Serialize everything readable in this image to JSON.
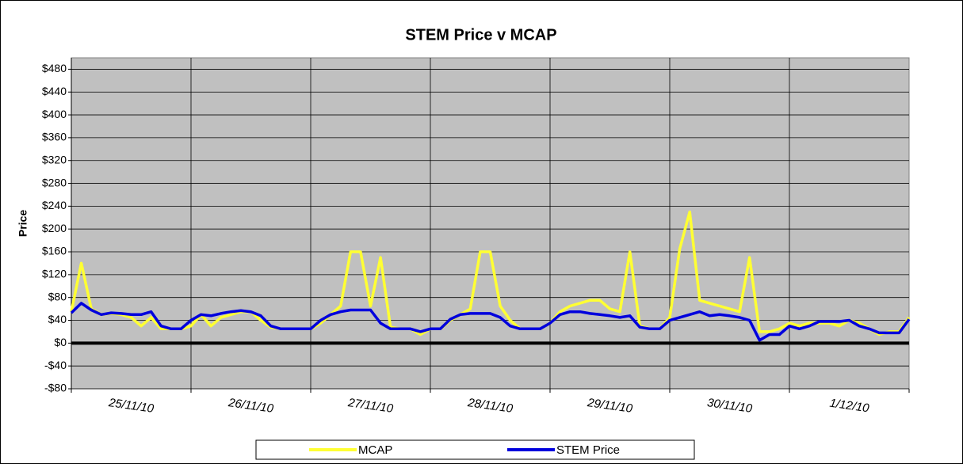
{
  "chart_data": {
    "type": "line",
    "title": "STEM Price v MCAP",
    "y_label": "Price",
    "x": [
      0,
      2,
      4,
      6,
      8,
      10,
      12,
      14,
      16,
      18,
      20,
      22,
      24,
      26,
      28,
      30,
      32,
      34,
      36,
      38,
      40,
      42,
      44,
      46,
      48,
      50,
      52,
      54,
      56,
      58,
      60,
      62,
      64,
      66,
      68,
      70,
      72,
      74,
      76,
      78,
      80,
      82,
      84,
      86,
      88,
      90,
      92,
      94,
      96,
      98,
      100,
      102,
      104,
      106,
      108,
      110,
      112,
      114,
      116,
      118,
      120,
      122,
      124,
      126,
      128,
      130,
      132,
      134,
      136,
      138,
      140,
      142,
      144,
      146,
      148,
      150,
      152,
      154,
      156,
      158,
      160,
      162,
      164,
      166,
      168
    ],
    "xlim": [
      0,
      168
    ],
    "xticks": [
      {
        "value": 12,
        "label": "25/11/10"
      },
      {
        "value": 36,
        "label": "26/11/10"
      },
      {
        "value": 60,
        "label": "27/11/10"
      },
      {
        "value": 84,
        "label": "28/11/10"
      },
      {
        "value": 108,
        "label": "29/11/10"
      },
      {
        "value": 132,
        "label": "30/11/10"
      },
      {
        "value": 156,
        "label": "1/12/10"
      }
    ],
    "ylim": [
      -80,
      500
    ],
    "yticks": [
      {
        "value": -80,
        "label": "-$80"
      },
      {
        "value": -40,
        "label": "-$40"
      },
      {
        "value": 0,
        "label": "$0"
      },
      {
        "value": 40,
        "label": "$40"
      },
      {
        "value": 80,
        "label": "$80"
      },
      {
        "value": 120,
        "label": "$120"
      },
      {
        "value": 160,
        "label": "$160"
      },
      {
        "value": 200,
        "label": "$200"
      },
      {
        "value": 240,
        "label": "$240"
      },
      {
        "value": 280,
        "label": "$280"
      },
      {
        "value": 320,
        "label": "$320"
      },
      {
        "value": 360,
        "label": "$360"
      },
      {
        "value": 400,
        "label": "$400"
      },
      {
        "value": 440,
        "label": "$440"
      },
      {
        "value": 480,
        "label": "$480"
      }
    ],
    "grid": true,
    "legend": "bottom",
    "series": [
      {
        "name": "MCAP",
        "color": "#ffff33",
        "values": [
          55,
          140,
          60,
          50,
          52,
          50,
          45,
          30,
          45,
          25,
          25,
          25,
          30,
          50,
          30,
          45,
          50,
          55,
          55,
          40,
          28,
          25,
          25,
          25,
          25,
          35,
          50,
          65,
          160,
          160,
          65,
          150,
          28,
          25,
          25,
          15,
          25,
          25,
          40,
          50,
          60,
          160,
          160,
          65,
          40,
          25,
          25,
          25,
          35,
          55,
          65,
          70,
          75,
          75,
          60,
          55,
          160,
          30,
          25,
          25,
          45,
          165,
          230,
          75,
          70,
          65,
          60,
          55,
          150,
          20,
          20,
          25,
          35,
          30,
          35,
          35,
          35,
          30,
          40,
          35,
          25,
          15,
          20,
          20,
          45
        ]
      },
      {
        "name": "STEM Price",
        "color": "#0000dd",
        "values": [
          53,
          70,
          58,
          50,
          53,
          52,
          50,
          50,
          55,
          30,
          25,
          25,
          40,
          50,
          48,
          52,
          55,
          57,
          55,
          48,
          30,
          25,
          25,
          25,
          25,
          40,
          50,
          55,
          58,
          58,
          58,
          35,
          25,
          25,
          25,
          20,
          25,
          25,
          42,
          50,
          52,
          52,
          52,
          45,
          30,
          25,
          25,
          25,
          35,
          50,
          55,
          55,
          52,
          50,
          48,
          45,
          48,
          28,
          25,
          25,
          40,
          45,
          50,
          55,
          48,
          50,
          48,
          45,
          40,
          5,
          15,
          15,
          30,
          25,
          30,
          38,
          38,
          38,
          40,
          30,
          25,
          18,
          18,
          18,
          42
        ]
      }
    ]
  }
}
